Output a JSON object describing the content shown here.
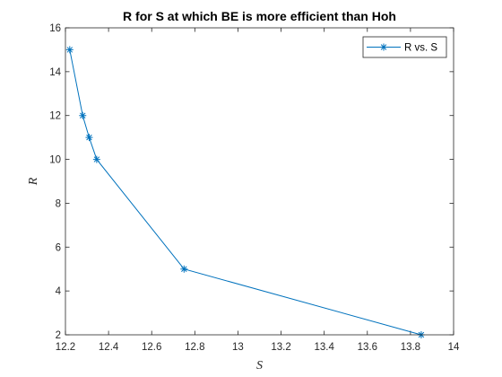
{
  "chart_data": {
    "type": "line",
    "title": "R for S at which BE is more efficient than Hoh",
    "xlabel": "S",
    "ylabel": "R",
    "xlim": [
      12.2,
      14
    ],
    "ylim": [
      2,
      16
    ],
    "xticks": [
      12.2,
      12.4,
      12.6,
      12.8,
      13,
      13.2,
      13.4,
      13.6,
      13.8,
      14
    ],
    "xtick_labels": [
      "12.2",
      "12.4",
      "12.6",
      "12.8",
      "13",
      "13.2",
      "13.4",
      "13.6",
      "13.8",
      "14"
    ],
    "yticks": [
      2,
      4,
      6,
      8,
      10,
      12,
      14,
      16
    ],
    "ytick_labels": [
      "2",
      "4",
      "6",
      "8",
      "10",
      "12",
      "14",
      "16"
    ],
    "grid": false,
    "legend_position": "top-right",
    "series": [
      {
        "name": "R vs. S",
        "marker": "asterisk",
        "color": "#0072BD",
        "x": [
          12.22,
          12.28,
          12.31,
          12.345,
          12.75,
          13.85
        ],
        "y": [
          15,
          12,
          11,
          10,
          5,
          2
        ]
      }
    ]
  }
}
